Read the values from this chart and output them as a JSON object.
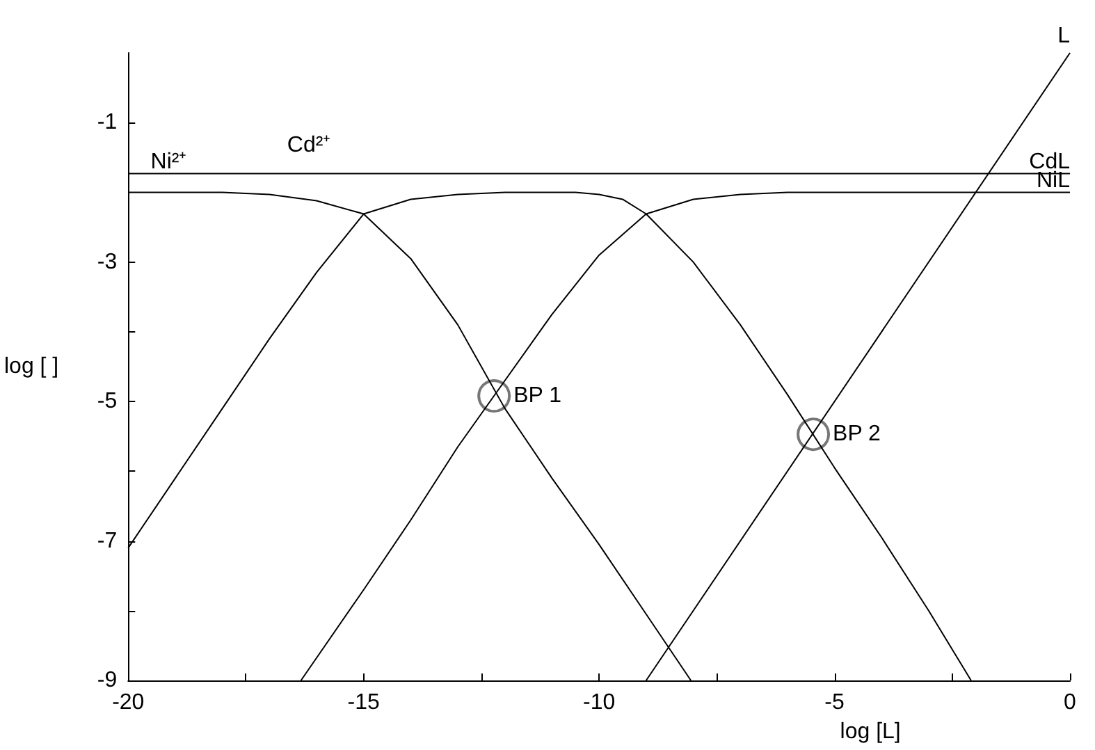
{
  "chart_data": {
    "type": "line",
    "xlabel": "log [L]",
    "ylabel": "log [ ]",
    "xlim": [
      -20,
      0
    ],
    "ylim": [
      -9,
      0
    ],
    "xticks": [
      -20,
      {
        "value": -17.5,
        "label": null
      },
      -15,
      {
        "value": -12.5,
        "label": null
      },
      -10,
      {
        "value": -7.5,
        "label": null
      },
      -5,
      {
        "value": -2.5,
        "label": null
      },
      0
    ],
    "yticks": [
      -9,
      {
        "value": -8,
        "label": null
      },
      -7,
      {
        "value": -6,
        "label": null
      },
      -5,
      {
        "value": -4,
        "label": null
      },
      -3,
      -1
    ],
    "grid": false,
    "marker": "none",
    "series": [
      {
        "color": "#000000",
        "x": [
          -20,
          0
        ],
        "values": [
          -1.73,
          -1.73
        ]
      },
      {
        "color": "#000000",
        "x": [
          -20,
          -18,
          -17,
          -16,
          -15,
          -14,
          -13,
          -12,
          -11,
          -10,
          -9,
          -8.05
        ],
        "values": [
          -2.0,
          -2.0,
          -2.03,
          -2.12,
          -2.31,
          -2.95,
          -3.9,
          -5.1,
          -6.1,
          -7.05,
          -8.05,
          -9
        ]
      },
      {
        "color": "#000000",
        "x": [
          -20,
          -19,
          -18,
          -17,
          -16,
          -15,
          -14,
          -13,
          -12,
          -10.5,
          -10,
          -9.5,
          -9,
          -8,
          -7,
          -6,
          -5,
          -4,
          -3,
          -2.1
        ],
        "values": [
          -7.1,
          -6.1,
          -5.1,
          -4.1,
          -3.15,
          -2.31,
          -2.1,
          -2.03,
          -2.0,
          -2.0,
          -2.03,
          -2.1,
          -2.31,
          -3.0,
          -3.9,
          -4.9,
          -5.95,
          -6.95,
          -8.0,
          -9
        ]
      },
      {
        "color": "#000000",
        "x": [
          -16.33,
          -15,
          -14,
          -13,
          -12,
          -11,
          -10,
          -9,
          -8,
          -7,
          -6,
          0
        ],
        "values": [
          -9,
          -7.7,
          -6.7,
          -5.65,
          -4.7,
          -3.75,
          -2.9,
          -2.31,
          -2.1,
          -2.03,
          -2.0,
          -2.0
        ]
      },
      {
        "color": "#000000",
        "x": [
          -9,
          0
        ],
        "values": [
          -9,
          0
        ]
      },
      {
        "type": "scatter",
        "marker": "circle",
        "color": "#555555",
        "x": [
          -12.23,
          -5.45
        ],
        "values": [
          -4.92,
          -5.47
        ]
      }
    ],
    "annotations": [
      {
        "text": "Ni²⁺",
        "x": -19.7,
        "y": -1.73
      },
      {
        "text": "Cd²⁺",
        "x": -16.8,
        "y": -1.73
      },
      {
        "text": "CdL",
        "x": 0,
        "y": -1.73
      },
      {
        "text": "NiL",
        "x": 0,
        "y": -2.0
      },
      {
        "text": "L",
        "x": 0,
        "y": 0
      },
      {
        "text": "BP 1",
        "x": -12.23,
        "y": -4.92
      },
      {
        "text": "BP 2",
        "x": -5.45,
        "y": -5.47
      }
    ]
  }
}
